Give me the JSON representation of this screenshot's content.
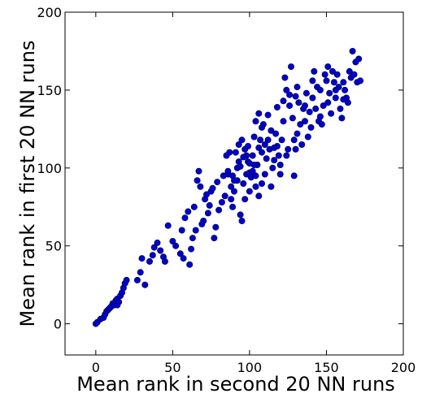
{
  "chart_data": {
    "type": "scatter",
    "title": "",
    "xlabel": "Mean rank in second 20 NN runs",
    "ylabel": "Mean rank in first 20 NN runs",
    "xlim": [
      -20,
      200
    ],
    "ylim": [
      -20,
      200
    ],
    "xticks": [
      0,
      50,
      100,
      150,
      200
    ],
    "yticks": [
      0,
      50,
      100,
      150,
      200
    ],
    "xtick_labels": [
      "0",
      "50",
      "100",
      "150",
      "200"
    ],
    "ytick_labels": [
      "0",
      "50",
      "100",
      "150",
      "200"
    ],
    "grid": false,
    "marker_color": "#0000cc",
    "marker_edge_color": "#000066",
    "series": [
      {
        "values": [
          [
            0,
            0
          ],
          [
            1,
            1
          ],
          [
            3,
            3
          ],
          [
            5,
            4
          ],
          [
            6,
            6
          ],
          [
            7,
            8
          ],
          [
            8,
            9
          ],
          [
            9,
            10
          ],
          [
            10,
            11
          ],
          [
            11,
            13
          ],
          [
            12,
            12
          ],
          [
            13,
            15
          ],
          [
            14,
            16
          ],
          [
            15,
            14
          ],
          [
            16,
            18
          ],
          [
            17,
            20
          ],
          [
            18,
            23
          ],
          [
            19,
            26
          ],
          [
            20,
            28
          ],
          [
            14,
            12
          ],
          [
            27,
            28
          ],
          [
            29,
            33
          ],
          [
            30,
            42
          ],
          [
            32,
            25
          ],
          [
            35,
            40
          ],
          [
            37,
            44
          ],
          [
            38,
            49
          ],
          [
            40,
            52
          ],
          [
            42,
            47
          ],
          [
            44,
            43
          ],
          [
            45,
            40
          ],
          [
            47,
            63
          ],
          [
            50,
            53
          ],
          [
            52,
            50
          ],
          [
            55,
            45
          ],
          [
            56,
            60
          ],
          [
            57,
            42
          ],
          [
            58,
            68
          ],
          [
            60,
            72
          ],
          [
            61,
            38
          ],
          [
            62,
            48
          ],
          [
            63,
            55
          ],
          [
            64,
            75
          ],
          [
            65,
            60
          ],
          [
            66,
            92
          ],
          [
            67,
            98
          ],
          [
            68,
            88
          ],
          [
            69,
            64
          ],
          [
            70,
            66
          ],
          [
            71,
            80
          ],
          [
            72,
            83
          ],
          [
            73,
            71
          ],
          [
            74,
            76
          ],
          [
            75,
            85
          ],
          [
            76,
            87
          ],
          [
            77,
            55
          ],
          [
            78,
            62
          ],
          [
            80,
            73
          ],
          [
            82,
            78
          ],
          [
            84,
            82
          ],
          [
            85,
            108
          ],
          [
            86,
            96
          ],
          [
            88,
            88
          ],
          [
            89,
            75
          ],
          [
            90,
            85
          ],
          [
            91,
            110
          ],
          [
            92,
            100
          ],
          [
            93,
            115
          ],
          [
            94,
            70
          ],
          [
            95,
            66
          ],
          [
            96,
            90
          ],
          [
            97,
            112
          ],
          [
            98,
            96
          ],
          [
            99,
            104
          ],
          [
            100,
            97
          ],
          [
            101,
            94
          ],
          [
            102,
            108
          ],
          [
            103,
            120
          ],
          [
            104,
            88
          ],
          [
            105,
            102
          ],
          [
            106,
            135
          ],
          [
            107,
            118
          ],
          [
            108,
            110
          ],
          [
            109,
            128
          ],
          [
            110,
            96
          ],
          [
            111,
            106
          ],
          [
            112,
            118
          ],
          [
            113,
            112
          ],
          [
            114,
            124
          ],
          [
            115,
            100
          ],
          [
            116,
            105
          ],
          [
            117,
            122
          ],
          [
            118,
            114
          ],
          [
            119,
            108
          ],
          [
            120,
            96
          ],
          [
            121,
            118
          ],
          [
            122,
            130
          ],
          [
            123,
            158
          ],
          [
            124,
            150
          ],
          [
            125,
            112
          ],
          [
            126,
            140
          ],
          [
            127,
            165
          ],
          [
            128,
            132
          ],
          [
            129,
            118
          ],
          [
            130,
            146
          ],
          [
            131,
            122
          ],
          [
            132,
            142
          ],
          [
            133,
            128
          ],
          [
            134,
            115
          ],
          [
            135,
            138
          ],
          [
            136,
            130
          ],
          [
            137,
            148
          ],
          [
            138,
            120
          ],
          [
            139,
            136
          ],
          [
            140,
            126
          ],
          [
            141,
            145
          ],
          [
            142,
            162
          ],
          [
            143,
            138
          ],
          [
            144,
            152
          ],
          [
            145,
            130
          ],
          [
            146,
            150
          ],
          [
            147,
            128
          ],
          [
            148,
            140
          ],
          [
            149,
            160
          ],
          [
            150,
            156
          ],
          [
            151,
            142
          ],
          [
            152,
            148
          ],
          [
            153,
            135
          ],
          [
            154,
            162
          ],
          [
            155,
            155
          ],
          [
            156,
            145
          ],
          [
            157,
            160
          ],
          [
            158,
            152
          ],
          [
            159,
            138
          ],
          [
            160,
            132
          ],
          [
            161,
            155
          ],
          [
            162,
            150
          ],
          [
            163,
            145
          ],
          [
            164,
            142
          ],
          [
            165,
            162
          ],
          [
            166,
            158
          ],
          [
            167,
            175
          ],
          [
            168,
            160
          ],
          [
            169,
            168
          ],
          [
            170,
            155
          ],
          [
            171,
            170
          ],
          [
            172,
            156
          ],
          [
            103,
            102
          ],
          [
            98,
            108
          ],
          [
            87,
            110
          ],
          [
            93,
            104
          ],
          [
            83,
            95
          ],
          [
            79,
            91
          ],
          [
            100,
            85
          ],
          [
            110,
            115
          ],
          [
            116,
            113
          ],
          [
            120,
            102
          ],
          [
            124,
            108
          ],
          [
            129,
            95
          ],
          [
            130,
            112
          ],
          [
            114,
            88
          ],
          [
            106,
            82
          ],
          [
            97,
            80
          ],
          [
            92,
            92
          ],
          [
            89,
            95
          ],
          [
            95,
            118
          ],
          [
            104,
            130
          ],
          [
            108,
            126
          ],
          [
            112,
            134
          ],
          [
            118,
            139
          ],
          [
            122,
            143
          ],
          [
            126,
            147
          ],
          [
            131,
            152
          ],
          [
            136,
            140
          ],
          [
            141,
            156
          ],
          [
            146,
            133
          ],
          [
            151,
            165
          ],
          [
            156,
            150
          ],
          [
            161,
            144
          ],
          [
            96,
            107
          ],
          [
            100,
            103
          ],
          [
            102,
            98
          ],
          [
            104,
            95
          ],
          [
            106,
            113
          ],
          [
            108,
            90
          ],
          [
            99,
            114
          ],
          [
            94,
            101
          ],
          [
            90,
            92
          ],
          [
            86,
            98
          ],
          [
            88,
            80
          ]
        ]
      }
    ]
  }
}
